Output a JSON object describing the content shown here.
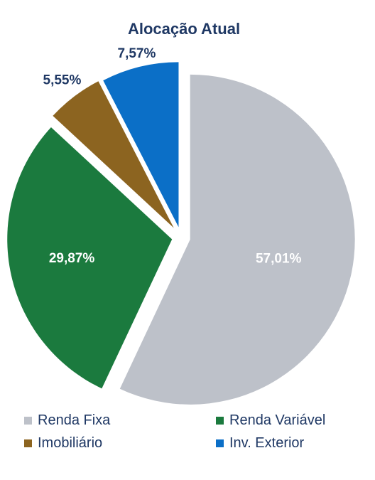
{
  "chart_data": {
    "type": "pie",
    "title": "Alocação Atual",
    "categories": [
      "Renda Fixa",
      "Renda Variável",
      "Imobiliário",
      "Inv. Exterior"
    ],
    "values": [
      57.01,
      29.87,
      5.55,
      7.57
    ],
    "labels": [
      "57,01%",
      "29,87%",
      "5,55%",
      "7,57%"
    ],
    "colors": [
      "#bdc1c9",
      "#1b7a3e",
      "#8c6420",
      "#0b6fc7"
    ],
    "legend_position": "bottom",
    "start_angle": "12 o'clock",
    "direction": "clockwise",
    "exploded": true
  }
}
